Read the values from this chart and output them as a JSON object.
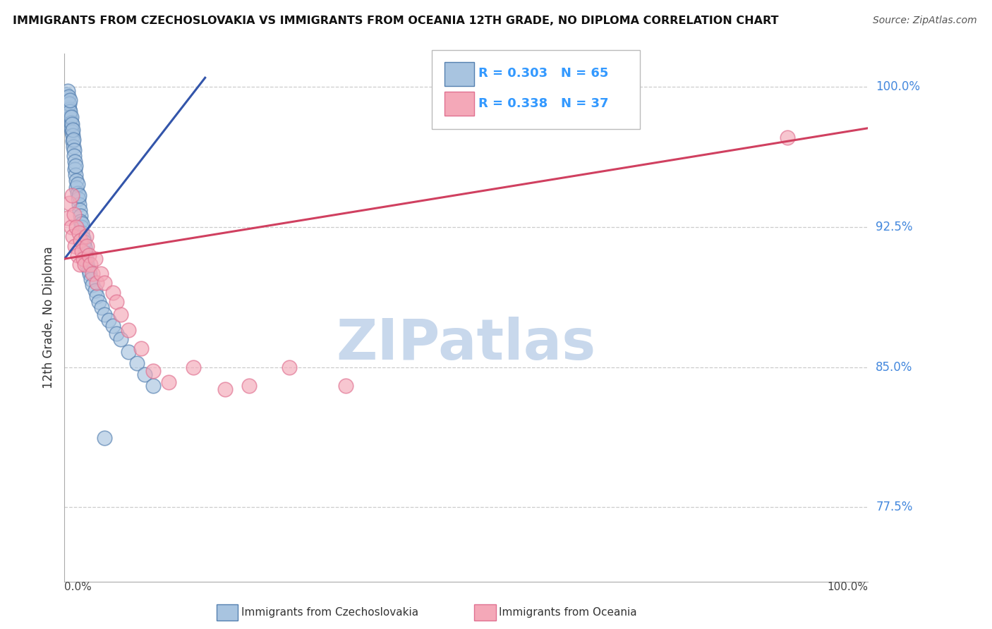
{
  "title": "IMMIGRANTS FROM CZECHOSLOVAKIA VS IMMIGRANTS FROM OCEANIA 12TH GRADE, NO DIPLOMA CORRELATION CHART",
  "source": "Source: ZipAtlas.com",
  "ylabel": "12th Grade, No Diploma",
  "ytick_labels": [
    "77.5%",
    "85.0%",
    "92.5%",
    "100.0%"
  ],
  "ytick_vals": [
    0.775,
    0.85,
    0.925,
    1.0
  ],
  "xlim": [
    0.0,
    1.0
  ],
  "ylim": [
    0.735,
    1.018
  ],
  "blue_fill": "#A8C4E0",
  "blue_edge": "#5580B0",
  "blue_line": "#3355AA",
  "pink_fill": "#F4A8B8",
  "pink_edge": "#E07090",
  "pink_line": "#D04060",
  "legend_color": "#3399FF",
  "right_label_color": "#4488DD",
  "watermark_color": "#C8D8EC",
  "R_blue": 0.303,
  "N_blue": 65,
  "R_pink": 0.338,
  "N_pink": 37,
  "blue_trend_x": [
    0.0,
    0.175
  ],
  "blue_trend_y": [
    0.908,
    1.005
  ],
  "pink_trend_x": [
    0.0,
    1.0
  ],
  "pink_trend_y": [
    0.908,
    0.978
  ],
  "blue_x": [
    0.002,
    0.003,
    0.004,
    0.004,
    0.005,
    0.005,
    0.006,
    0.006,
    0.006,
    0.007,
    0.007,
    0.007,
    0.008,
    0.008,
    0.008,
    0.009,
    0.009,
    0.01,
    0.01,
    0.01,
    0.011,
    0.011,
    0.012,
    0.012,
    0.013,
    0.013,
    0.014,
    0.014,
    0.015,
    0.015,
    0.016,
    0.016,
    0.017,
    0.018,
    0.018,
    0.019,
    0.02,
    0.02,
    0.021,
    0.022,
    0.022,
    0.023,
    0.024,
    0.025,
    0.026,
    0.027,
    0.028,
    0.03,
    0.031,
    0.033,
    0.035,
    0.038,
    0.04,
    0.043,
    0.046,
    0.05,
    0.055,
    0.06,
    0.065,
    0.07,
    0.08,
    0.09,
    0.1,
    0.11,
    0.05
  ],
  "blue_y": [
    0.996,
    0.994,
    0.998,
    0.992,
    0.989,
    0.995,
    0.988,
    0.985,
    0.991,
    0.984,
    0.987,
    0.993,
    0.981,
    0.978,
    0.984,
    0.976,
    0.98,
    0.974,
    0.971,
    0.977,
    0.968,
    0.972,
    0.966,
    0.963,
    0.96,
    0.956,
    0.953,
    0.958,
    0.95,
    0.946,
    0.943,
    0.948,
    0.94,
    0.937,
    0.942,
    0.934,
    0.931,
    0.928,
    0.925,
    0.922,
    0.927,
    0.919,
    0.917,
    0.914,
    0.911,
    0.908,
    0.905,
    0.902,
    0.9,
    0.897,
    0.894,
    0.891,
    0.888,
    0.885,
    0.882,
    0.878,
    0.875,
    0.872,
    0.868,
    0.865,
    0.858,
    0.852,
    0.846,
    0.84,
    0.812
  ],
  "pink_x": [
    0.004,
    0.006,
    0.008,
    0.009,
    0.01,
    0.012,
    0.013,
    0.015,
    0.016,
    0.018,
    0.019,
    0.02,
    0.022,
    0.023,
    0.025,
    0.027,
    0.028,
    0.03,
    0.032,
    0.035,
    0.038,
    0.04,
    0.045,
    0.05,
    0.06,
    0.065,
    0.07,
    0.08,
    0.095,
    0.11,
    0.13,
    0.16,
    0.2,
    0.23,
    0.28,
    0.35,
    0.9
  ],
  "pink_y": [
    0.93,
    0.938,
    0.925,
    0.942,
    0.92,
    0.932,
    0.915,
    0.925,
    0.91,
    0.922,
    0.905,
    0.918,
    0.912,
    0.908,
    0.905,
    0.92,
    0.915,
    0.91,
    0.905,
    0.9,
    0.908,
    0.895,
    0.9,
    0.895,
    0.89,
    0.885,
    0.878,
    0.87,
    0.86,
    0.848,
    0.842,
    0.85,
    0.838,
    0.84,
    0.85,
    0.84,
    0.973
  ]
}
